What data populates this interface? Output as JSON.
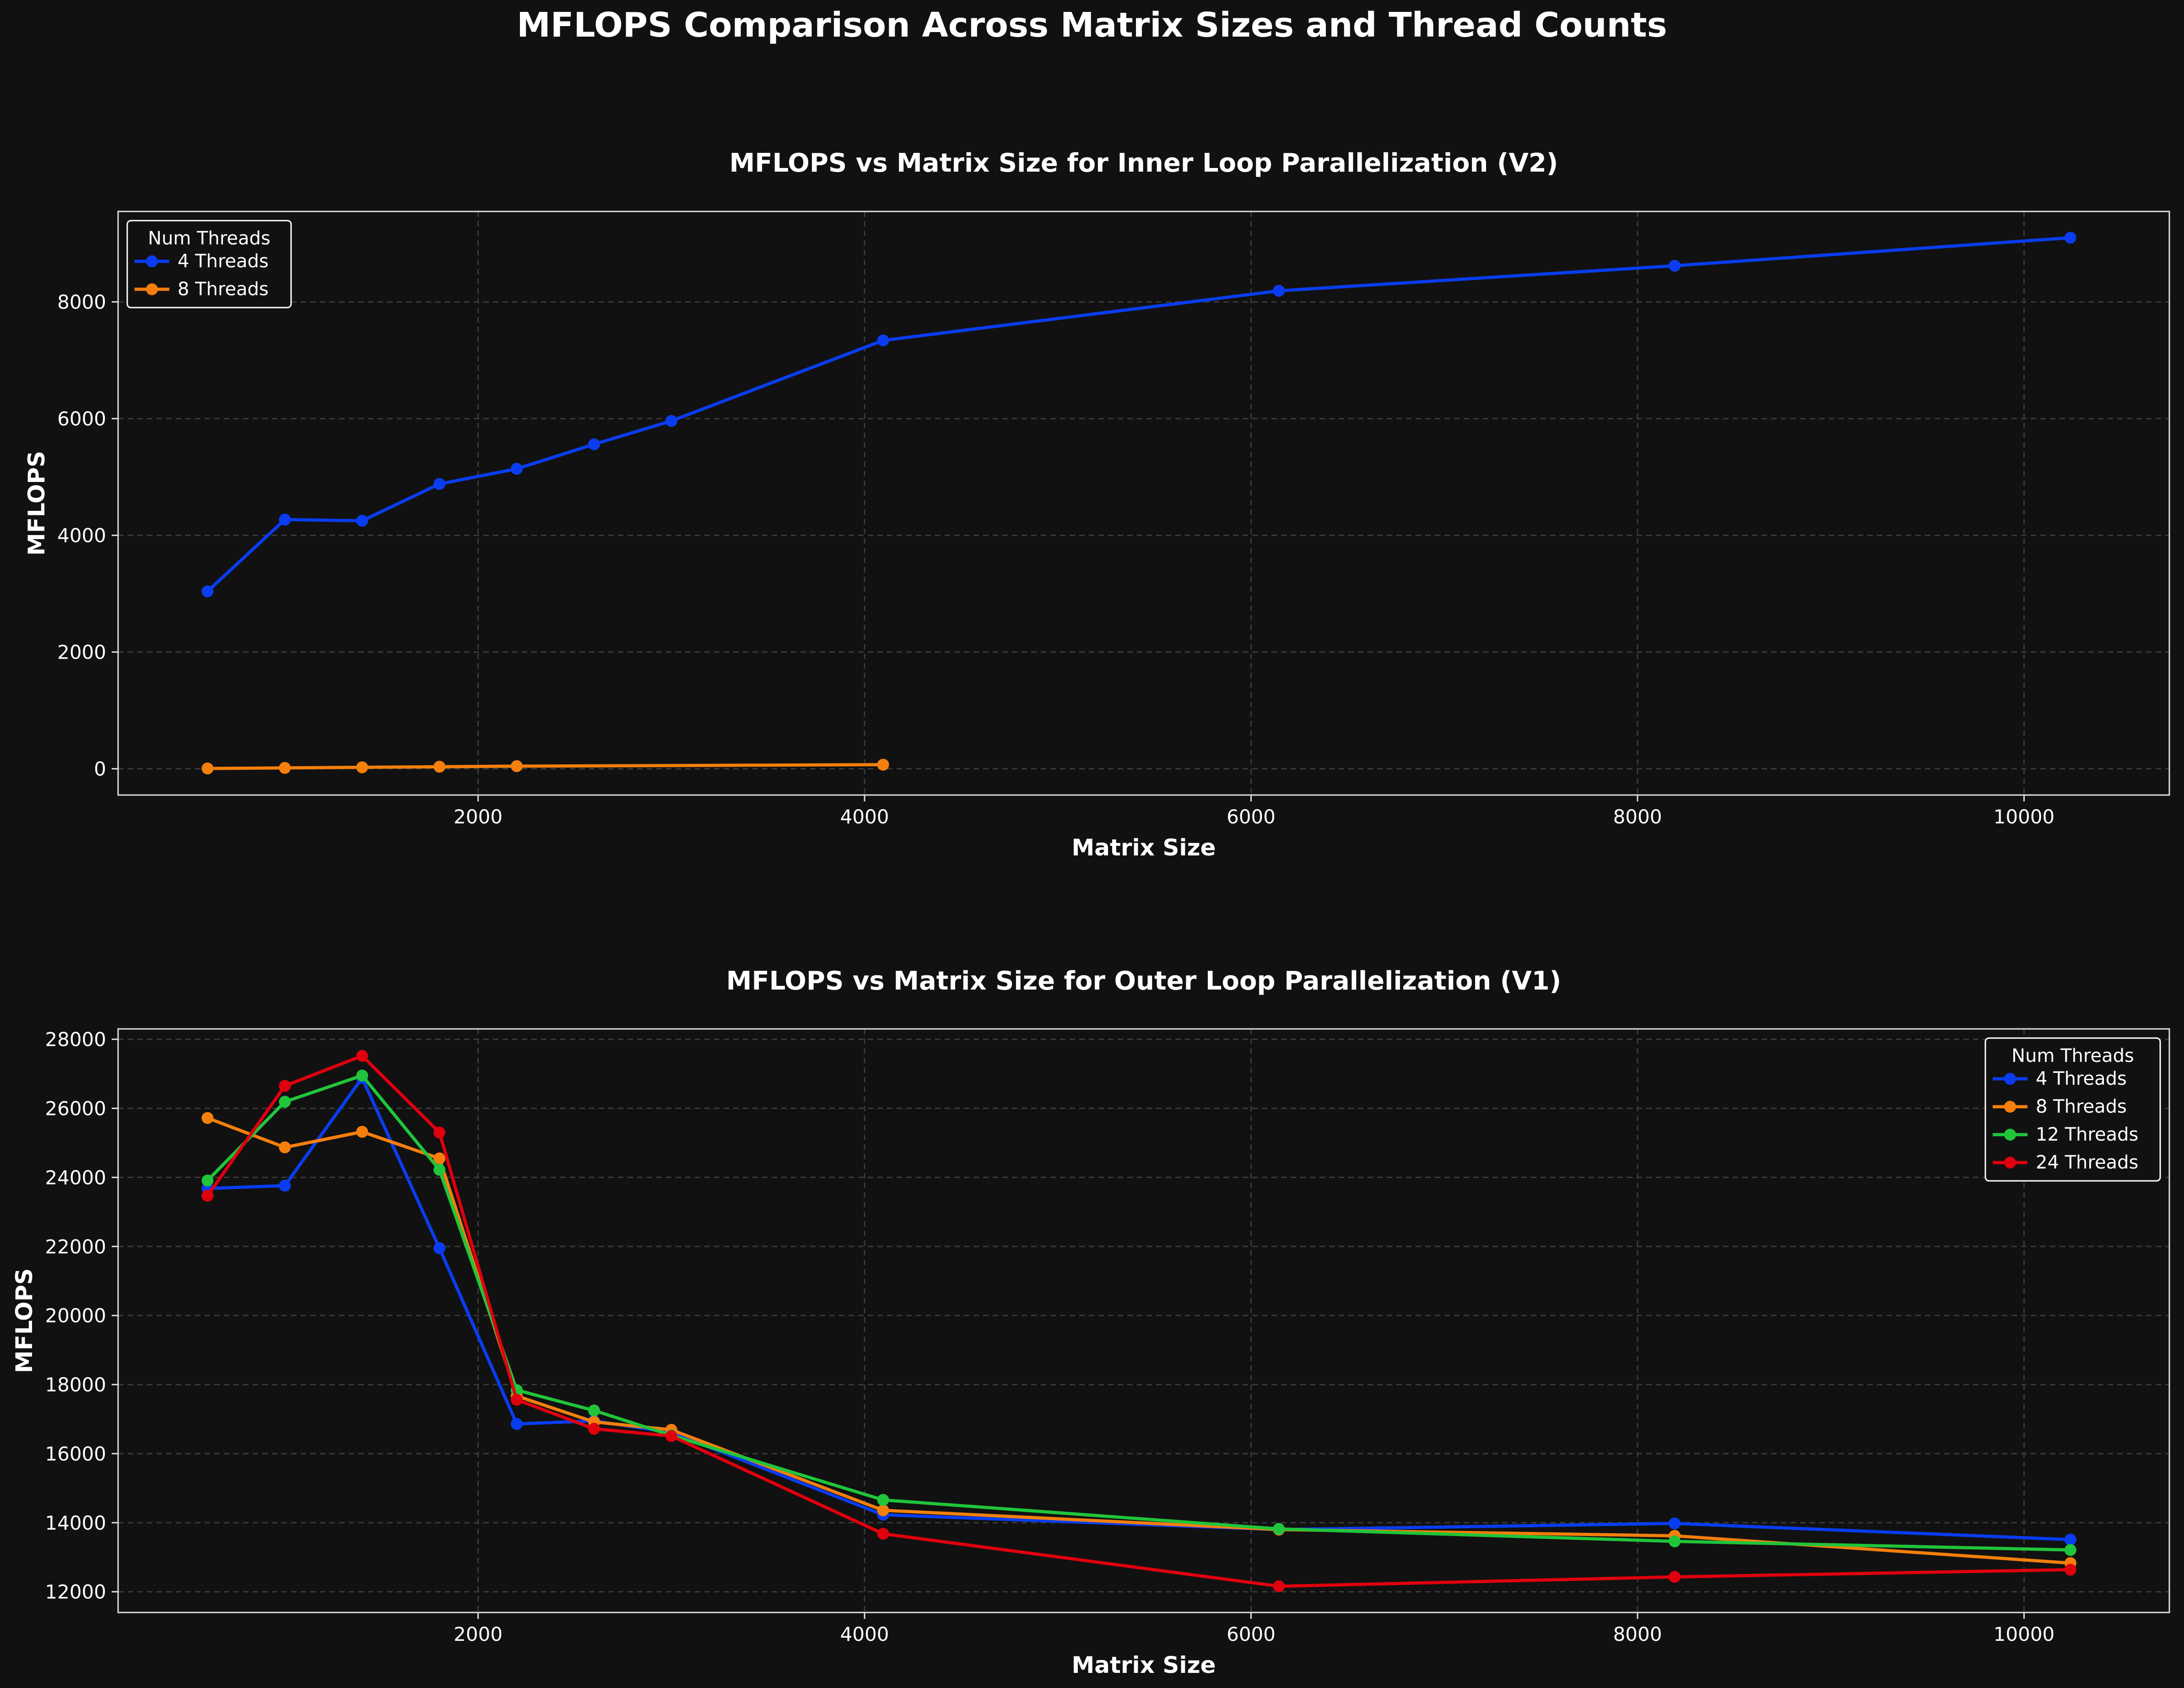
{
  "figure_title": "MFLOPS Comparison Across Matrix Sizes and Thread Counts",
  "colors": {
    "background": "#111111",
    "axes_edge": "#e0e0e0",
    "grid": "#3a3a3a",
    "series": [
      "#0a3df0",
      "#f57f0c",
      "#20c53a",
      "#e0000e"
    ]
  },
  "chart_data": [
    {
      "type": "line",
      "title": "MFLOPS vs Matrix Size for Inner Loop Parallelization (V2)",
      "xlabel": "Matrix Size",
      "ylabel": "MFLOPS",
      "xlim": [
        137,
        10752
      ],
      "ylim": [
        -450,
        9550
      ],
      "xticks": [
        2000,
        4000,
        6000,
        8000,
        10000
      ],
      "yticks": [
        0,
        2000,
        4000,
        6000,
        8000
      ],
      "grid": true,
      "legend": {
        "title": "Num Threads",
        "position": "top-left"
      },
      "series": [
        {
          "name": "4 Threads",
          "x": [
            600,
            1000,
            1400,
            1800,
            2200,
            2600,
            3000,
            4096,
            6144,
            8192,
            10240
          ],
          "y": [
            3040,
            4270,
            4250,
            4880,
            5140,
            5560,
            5960,
            7340,
            8190,
            8620,
            9100
          ]
        },
        {
          "name": "8 Threads",
          "x": [
            600,
            1000,
            1400,
            1800,
            2200,
            4096
          ],
          "y": [
            5,
            15,
            25,
            35,
            45,
            70
          ]
        }
      ]
    },
    {
      "type": "line",
      "title": "MFLOPS vs Matrix Size for Outer Loop Parallelization (V1)",
      "xlabel": "Matrix Size",
      "ylabel": "MFLOPS",
      "xlim": [
        137,
        10752
      ],
      "ylim": [
        11400,
        28300
      ],
      "xticks": [
        2000,
        4000,
        6000,
        8000,
        10000
      ],
      "yticks": [
        12000,
        14000,
        16000,
        18000,
        20000,
        22000,
        24000,
        26000,
        28000
      ],
      "grid": true,
      "legend": {
        "title": "Num Threads",
        "position": "top-right"
      },
      "series": [
        {
          "name": "4 Threads",
          "x": [
            600,
            1000,
            1400,
            1800,
            2200,
            2600,
            3000,
            4096,
            6144,
            8192,
            10240
          ],
          "y": [
            23680,
            23760,
            26880,
            21950,
            16860,
            16950,
            16610,
            14230,
            13800,
            13980,
            13510
          ]
        },
        {
          "name": "8 Threads",
          "x": [
            600,
            1000,
            1400,
            1800,
            2200,
            2600,
            3000,
            4096,
            6144,
            8192,
            10240
          ],
          "y": [
            25720,
            24870,
            25320,
            24550,
            17670,
            16920,
            16690,
            14360,
            13800,
            13620,
            12830
          ]
        },
        {
          "name": "12 Threads",
          "x": [
            600,
            1000,
            1400,
            1800,
            2200,
            2600,
            3000,
            4096,
            6144,
            8192,
            10240
          ],
          "y": [
            23910,
            26190,
            26950,
            24220,
            17840,
            17250,
            16530,
            14660,
            13820,
            13460,
            13210
          ]
        },
        {
          "name": "24 Threads",
          "x": [
            600,
            1000,
            1400,
            1800,
            2200,
            2600,
            3000,
            4096,
            6144,
            8192,
            10240
          ],
          "y": [
            23470,
            26650,
            27520,
            25300,
            17560,
            16720,
            16510,
            13680,
            12160,
            12430,
            12640
          ]
        }
      ]
    }
  ]
}
